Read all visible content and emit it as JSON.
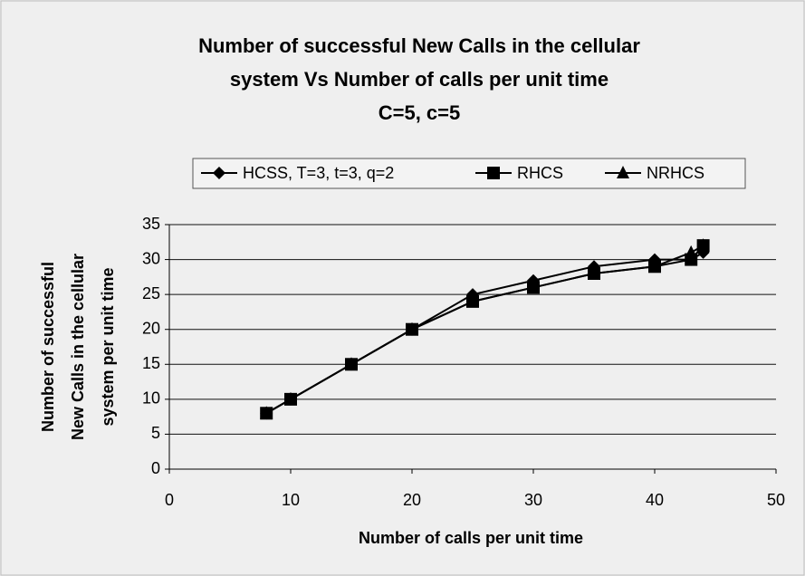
{
  "chart_data": {
    "type": "line",
    "title": [
      "Number of successful New Calls in the cellular",
      "system Vs Number of calls per unit time",
      "C=5, c=5"
    ],
    "xlabel": "Number of calls per unit time",
    "ylabel": [
      "Number of successful",
      "New Calls in the cellular",
      "system per unit time"
    ],
    "x": [
      8,
      10,
      15,
      20,
      25,
      30,
      35,
      40,
      43,
      44
    ],
    "series": [
      {
        "name": "HCSS, T=3, t=3, q=2",
        "color": "#000000",
        "marker": "diamond",
        "values": [
          8,
          10,
          15,
          20,
          25,
          27,
          29,
          30,
          30,
          31
        ]
      },
      {
        "name": "RHCS",
        "color": "#000000",
        "marker": "square",
        "values": [
          8,
          10,
          15,
          20,
          24,
          26,
          28,
          29,
          30,
          32
        ]
      },
      {
        "name": "NRHCS",
        "color": "#000000",
        "marker": "triangle",
        "values": [
          8,
          10,
          15,
          20,
          24,
          26,
          28,
          29,
          31,
          32
        ]
      }
    ],
    "xlim": [
      0,
      50
    ],
    "xticks": [
      0,
      10,
      20,
      30,
      40,
      50
    ],
    "ylim": [
      0,
      35
    ],
    "yticks": [
      0,
      5,
      10,
      15,
      20,
      25,
      30,
      35
    ],
    "grid": true,
    "legend": "top"
  }
}
